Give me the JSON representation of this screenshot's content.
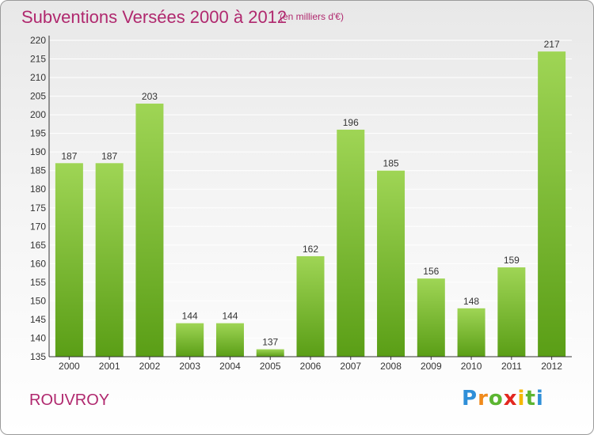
{
  "header": {
    "title": "Subventions Versées 2000 à 2012",
    "unit": "(en milliers d'€)"
  },
  "footer": {
    "commune": "ROUVROY",
    "logo": "Proxiti"
  },
  "colors": {
    "title": "#b0286e",
    "bar_light": "#9fd555",
    "bar_dark": "#5a9e16",
    "axis": "#333333",
    "grid": "#ffffff"
  },
  "chart_data": {
    "type": "bar",
    "title": "Subventions Versées 2000 à 2012",
    "subtitle": "(en milliers d'€)",
    "categories": [
      "2000",
      "2001",
      "2002",
      "2003",
      "2004",
      "2005",
      "2006",
      "2007",
      "2008",
      "2009",
      "2010",
      "2011",
      "2012"
    ],
    "values": [
      187,
      187,
      203,
      144,
      144,
      137,
      162,
      196,
      185,
      156,
      148,
      159,
      217
    ],
    "ylim": [
      135,
      220
    ],
    "yticks": [
      135,
      140,
      145,
      150,
      155,
      160,
      165,
      170,
      175,
      180,
      185,
      190,
      195,
      200,
      205,
      210,
      215,
      220
    ],
    "grid": true,
    "data_labels": true,
    "legend": "none"
  }
}
